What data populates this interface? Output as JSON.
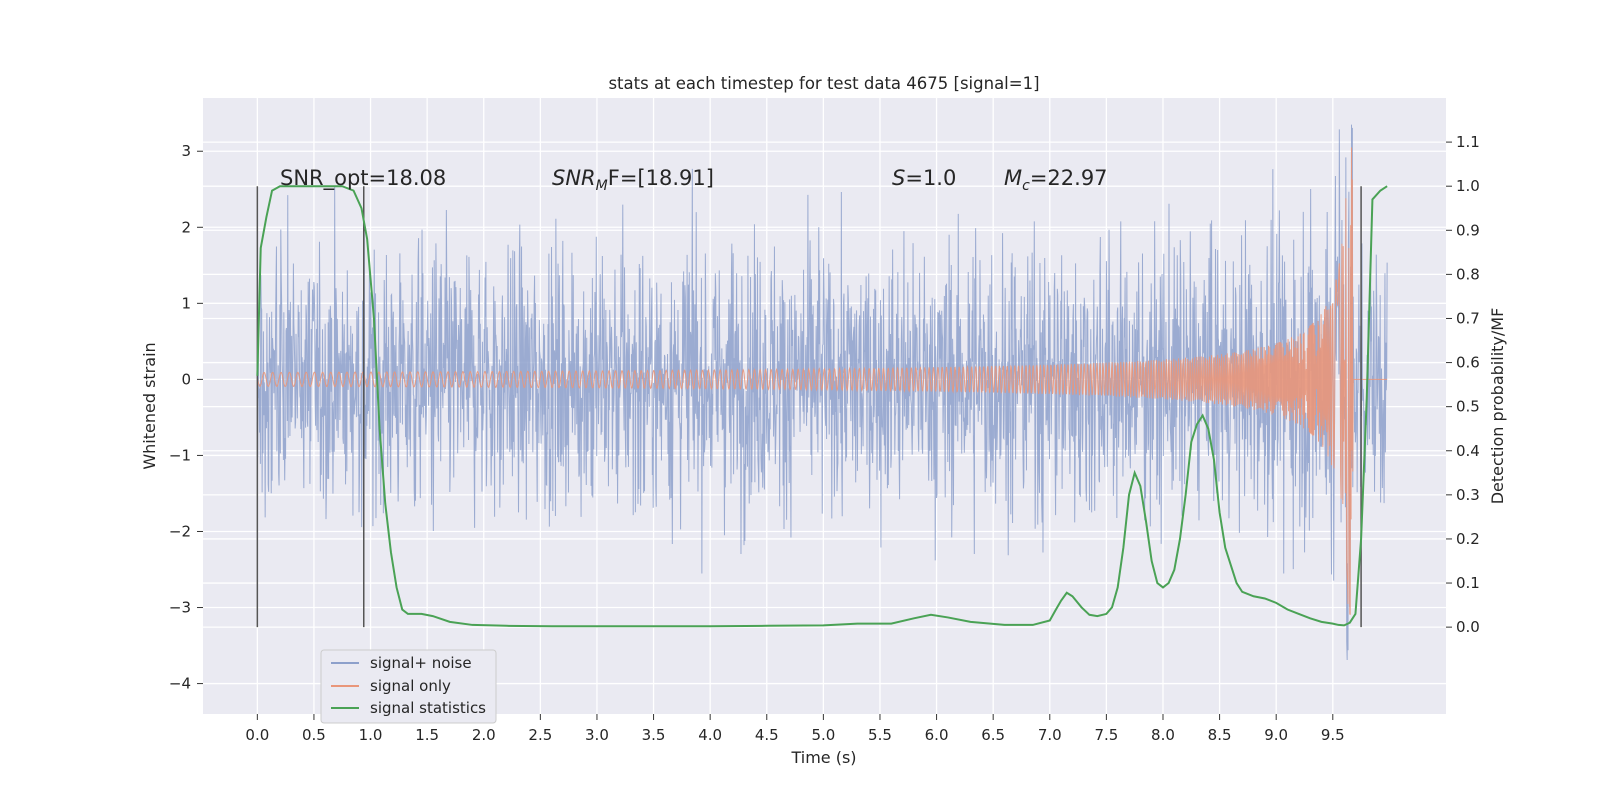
{
  "chart_data": {
    "type": "line",
    "title": "stats at each timestep for test data 4675 [signal=1]",
    "xlabel": "Time (s)",
    "ylabel": "Whitened strain",
    "ylabel_right": "Detection probability/MF",
    "xlim": [
      -0.48,
      10.5
    ],
    "ylim": [
      -4.4,
      3.7
    ],
    "ylim_right": [
      -0.197,
      1.2
    ],
    "x_ticks": [
      "0.0",
      "0.5",
      "1.0",
      "1.5",
      "2.0",
      "2.5",
      "3.0",
      "3.5",
      "4.0",
      "4.5",
      "5.0",
      "5.5",
      "6.0",
      "6.5",
      "7.0",
      "7.5",
      "8.0",
      "8.5",
      "9.0",
      "9.5"
    ],
    "y_ticks": [
      "3",
      "2",
      "1",
      "0",
      "−1",
      "−2",
      "−3",
      "−4"
    ],
    "y_right_ticks": [
      "0.0",
      "0.1",
      "0.2",
      "0.3",
      "0.4",
      "0.5",
      "0.6",
      "0.7",
      "0.8",
      "0.9",
      "1.0",
      "1.1"
    ],
    "annotations": {
      "snr_opt": "SNR_opt=18.08",
      "snr_mf_a": "SNR",
      "snr_mf_b": "M",
      "snr_mf_c": "F=[18.91]",
      "s_a": "S",
      "s_b": "=1.0",
      "mc_a": "M",
      "mc_b": "c",
      "mc_c": "=22.97"
    },
    "vertical_markers": [
      0.0,
      0.94,
      9.75
    ],
    "legend": {
      "placement": "lower-left",
      "entries": [
        "signal+ noise",
        "signal only",
        "signal statistics"
      ]
    },
    "colors": {
      "noise": "#8da0cb",
      "signal": "#e9967a",
      "stats": "#4aa255",
      "background": "#eaeaf2",
      "grid": "#ffffff",
      "marker": "#555555"
    },
    "series": [
      {
        "name": "signal statistics",
        "axis": "right",
        "x": [
          0.0,
          0.03,
          0.08,
          0.13,
          0.2,
          0.3,
          0.45,
          0.6,
          0.75,
          0.85,
          0.92,
          0.97,
          1.03,
          1.08,
          1.13,
          1.18,
          1.23,
          1.28,
          1.33,
          1.38,
          1.45,
          1.55,
          1.7,
          1.9,
          2.2,
          2.6,
          3.0,
          3.5,
          4.0,
          4.5,
          5.0,
          5.3,
          5.6,
          5.8,
          5.95,
          6.1,
          6.3,
          6.6,
          6.85,
          7.0,
          7.05,
          7.1,
          7.15,
          7.2,
          7.28,
          7.35,
          7.42,
          7.5,
          7.55,
          7.6,
          7.65,
          7.7,
          7.75,
          7.8,
          7.85,
          7.9,
          7.95,
          8.0,
          8.05,
          8.1,
          8.15,
          8.2,
          8.25,
          8.3,
          8.35,
          8.4,
          8.45,
          8.5,
          8.55,
          8.6,
          8.65,
          8.7,
          8.8,
          8.9,
          9.0,
          9.1,
          9.2,
          9.3,
          9.4,
          9.5,
          9.55,
          9.6,
          9.65,
          9.7,
          9.75,
          9.8,
          9.85,
          9.92,
          9.98
        ],
        "y": [
          0.57,
          0.86,
          0.93,
          0.99,
          1.0,
          1.0,
          1.0,
          1.0,
          1.0,
          0.99,
          0.95,
          0.88,
          0.7,
          0.45,
          0.28,
          0.17,
          0.09,
          0.04,
          0.03,
          0.03,
          0.03,
          0.025,
          0.012,
          0.005,
          0.003,
          0.002,
          0.002,
          0.002,
          0.002,
          0.003,
          0.004,
          0.008,
          0.008,
          0.02,
          0.028,
          0.022,
          0.012,
          0.005,
          0.005,
          0.015,
          0.038,
          0.06,
          0.078,
          0.07,
          0.045,
          0.028,
          0.025,
          0.03,
          0.045,
          0.09,
          0.18,
          0.3,
          0.35,
          0.32,
          0.24,
          0.15,
          0.1,
          0.09,
          0.1,
          0.13,
          0.2,
          0.3,
          0.42,
          0.46,
          0.48,
          0.45,
          0.38,
          0.26,
          0.18,
          0.14,
          0.1,
          0.08,
          0.07,
          0.065,
          0.055,
          0.04,
          0.03,
          0.02,
          0.012,
          0.008,
          0.005,
          0.004,
          0.01,
          0.03,
          0.2,
          0.52,
          0.97,
          0.99,
          1.0
        ]
      },
      {
        "name": "signal+ noise",
        "axis": "left",
        "x_range": [
          0.0,
          9.98
        ],
        "envelope_sigma": 0.85
      },
      {
        "name": "signal only",
        "axis": "left",
        "x_range": [
          0.0,
          9.98
        ],
        "merger_time": 9.68,
        "peak_amplitude": 3.1
      }
    ]
  }
}
